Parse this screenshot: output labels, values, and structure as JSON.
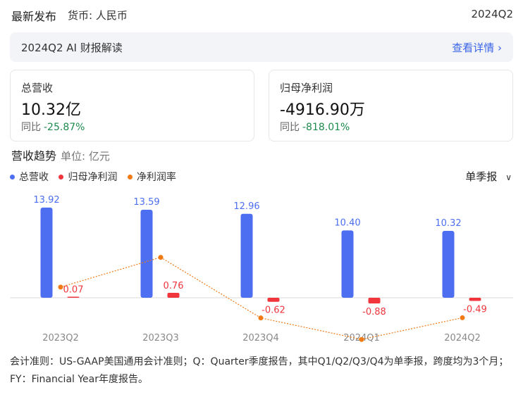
{
  "header": {
    "title": "最新发布",
    "currency": "货币: 人民币",
    "period": "2024Q2"
  },
  "ai_bar": {
    "label": "2024Q2 AI 财报解读",
    "link": "查看详情 ›"
  },
  "cards": [
    {
      "label": "总营收",
      "value": "10.32亿",
      "yoy_label": "同比",
      "yoy_value": "-25.87%"
    },
    {
      "label": "归母净利润",
      "value": "-4916.90万",
      "yoy_label": "同比",
      "yoy_value": "-818.01%"
    }
  ],
  "trend": {
    "title": "营收趋势",
    "unit": "单位: 亿元"
  },
  "legend": [
    {
      "label": "总营收",
      "color": "#4d6ef0"
    },
    {
      "label": "归母净利润",
      "color": "#f0353d"
    },
    {
      "label": "净利润率",
      "color": "#f07a16"
    }
  ],
  "selector": {
    "label": "单季报",
    "icon": "chevron-down-icon"
  },
  "chart_data": {
    "type": "bar",
    "categories": [
      "2023Q2",
      "2023Q3",
      "2023Q4",
      "2024Q1",
      "2024Q2"
    ],
    "series": [
      {
        "name": "总营收",
        "type": "bar",
        "color": "#4d6ef0",
        "values": [
          13.92,
          13.59,
          12.96,
          10.4,
          10.32
        ],
        "labels": [
          "13.92",
          "13.59",
          "12.96",
          "10.40",
          "10.32"
        ]
      },
      {
        "name": "归母净利润",
        "type": "bar",
        "color": "#f0353d",
        "values": [
          0.07,
          0.76,
          -0.62,
          -0.88,
          -0.49
        ],
        "labels": [
          "0.07",
          "0.76",
          "-0.62",
          "-0.88",
          "-0.49"
        ]
      },
      {
        "name": "净利润率",
        "type": "line",
        "color": "#f07a16",
        "values": [
          0.5,
          5.59,
          -4.78,
          -8.46,
          -4.75
        ]
      }
    ],
    "grid": false,
    "legend_position": "top-left"
  },
  "footnote": "会计准则：US-GAAP美国通用会计准则；Q：Quarter季度报告，其中Q1/Q2/Q3/Q4为单季报，跨度均为3个月；FY：Financial Year年度报告。"
}
